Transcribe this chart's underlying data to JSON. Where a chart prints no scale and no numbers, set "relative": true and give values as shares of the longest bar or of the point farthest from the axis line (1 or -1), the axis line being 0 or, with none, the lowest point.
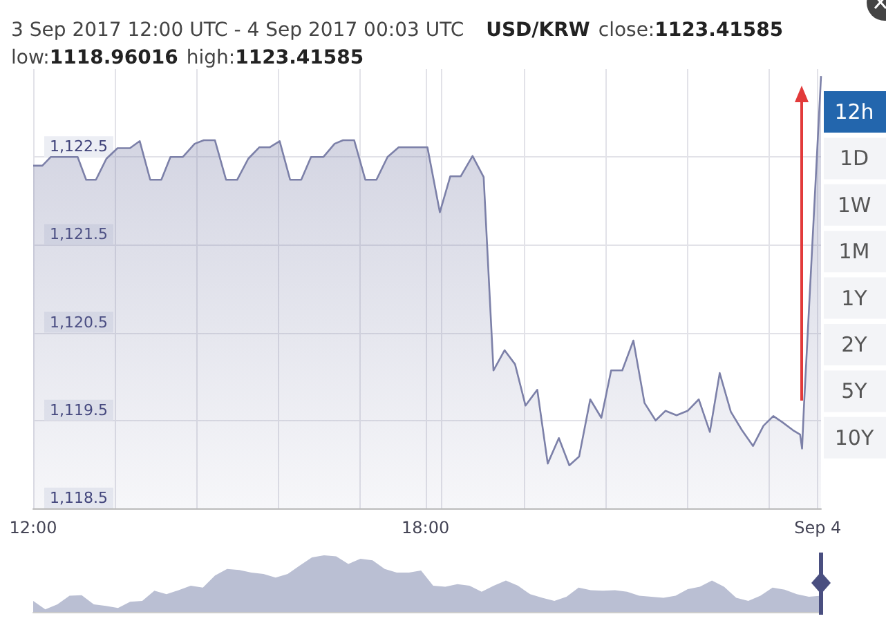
{
  "chart_data": [
    {
      "type": "area",
      "title": "3 Sep 2017 12:00 UTC - 4 Sep 2017 00:03 UTC",
      "subtitle": "USD/KRW close:1123.41585 low:1118.96016 high:1123.41585",
      "x": [
        12.0,
        12.14,
        12.27,
        12.68,
        12.81,
        12.96,
        13.12,
        13.29,
        13.48,
        13.63,
        13.79,
        13.96,
        14.1,
        14.29,
        14.47,
        14.61,
        14.78,
        14.95,
        15.12,
        15.29,
        15.46,
        15.62,
        15.77,
        15.93,
        16.1,
        16.25,
        16.44,
        16.61,
        16.74,
        16.91,
        17.08,
        17.25,
        17.42,
        17.59,
        18.03,
        18.22,
        18.38,
        18.54,
        18.72,
        18.89,
        19.04,
        19.21,
        19.37,
        19.53,
        19.71,
        19.87,
        20.04,
        20.2,
        20.35,
        20.52,
        20.69,
        20.84,
        21.01,
        21.18,
        21.35,
        21.52,
        21.67,
        21.84,
        22.01,
        22.18,
        22.35,
        22.5,
        22.67,
        22.84,
        23.01,
        23.17,
        23.32,
        23.46,
        23.62,
        23.73,
        23.76,
        23.79,
        24.05
      ],
      "series": [
        {
          "color": "#7c80a8",
          "values": [
            1122.4,
            1122.4,
            1122.5,
            1122.5,
            1122.24,
            1122.24,
            1122.48,
            1122.6,
            1122.6,
            1122.68,
            1122.24,
            1122.24,
            1122.5,
            1122.5,
            1122.65,
            1122.69,
            1122.69,
            1122.24,
            1122.24,
            1122.48,
            1122.61,
            1122.61,
            1122.68,
            1122.24,
            1122.24,
            1122.5,
            1122.5,
            1122.65,
            1122.69,
            1122.69,
            1122.24,
            1122.24,
            1122.5,
            1122.61,
            1122.61,
            1121.87,
            1122.28,
            1122.28,
            1122.51,
            1122.27,
            1120.07,
            1120.3,
            1120.14,
            1119.67,
            1119.85,
            1119.01,
            1119.3,
            1118.99,
            1119.09,
            1119.74,
            1119.53,
            1120.07,
            1120.07,
            1120.41,
            1119.7,
            1119.5,
            1119.61,
            1119.56,
            1119.61,
            1119.74,
            1119.37,
            1120.04,
            1119.6,
            1119.39,
            1119.21,
            1119.44,
            1119.55,
            1119.48,
            1119.39,
            1119.34,
            1119.18,
            1119.68,
            1123.42
          ]
        }
      ],
      "xlim": [
        12,
        24.05
      ],
      "xticks": [
        {
          "value": 12,
          "label": "12:00"
        },
        {
          "value": 13.25,
          "label": null
        },
        {
          "value": 14.5,
          "label": null
        },
        {
          "value": 15.75,
          "label": null
        },
        {
          "value": 17,
          "label": null
        },
        {
          "value": 18,
          "label": "18:00"
        },
        {
          "value": 18.25,
          "label": null
        },
        {
          "value": 19.5,
          "label": null
        },
        {
          "value": 20.75,
          "label": null
        },
        {
          "value": 22,
          "label": null
        },
        {
          "value": 23.25,
          "label": null
        },
        {
          "value": 24,
          "label": "Sep 4"
        }
      ],
      "ylim": [
        1118.5,
        1123.5
      ],
      "yticks": [
        {
          "value": 1118.5,
          "label": "1,118.5"
        },
        {
          "value": 1119.5,
          "label": "1,119.5"
        },
        {
          "value": 1120.5,
          "label": "1,120.5"
        },
        {
          "value": 1121.5,
          "label": "1,121.5"
        },
        {
          "value": 1122.5,
          "label": "1,122.5"
        }
      ],
      "grid": true,
      "marker": "none",
      "line_style": "solid",
      "annotations": [
        "12h",
        "1D",
        "1W",
        "1M",
        "1Y",
        "2Y",
        "5Y",
        "10Y"
      ]
    },
    {
      "type": "area",
      "relative": true,
      "categories": [
        null,
        null,
        null,
        null,
        null,
        null,
        null,
        null,
        null,
        null,
        null,
        null,
        null,
        null,
        null,
        null,
        null,
        null,
        null,
        null,
        null,
        null,
        null,
        null,
        null,
        null,
        null,
        null,
        null,
        null,
        null,
        null,
        null,
        null,
        null,
        null,
        null,
        null,
        null,
        null,
        null,
        null,
        null,
        null,
        null,
        null,
        null,
        null,
        null,
        null,
        null,
        null,
        null,
        null,
        null,
        null,
        null,
        null,
        null,
        null,
        null,
        null,
        null,
        null,
        null,
        null
      ],
      "series": [
        {
          "color": "#babfd3",
          "values": [
            0.196,
            0.045,
            0.134,
            0.286,
            0.295,
            0.134,
            0.107,
            0.071,
            0.179,
            0.196,
            0.375,
            0.313,
            0.384,
            0.464,
            0.429,
            0.643,
            0.759,
            0.741,
            0.696,
            0.67,
            0.607,
            0.67,
            0.821,
            0.964,
            1,
            0.982,
            0.848,
            0.938,
            0.911,
            0.759,
            0.696,
            0.696,
            0.732,
            0.464,
            0.446,
            0.491,
            0.464,
            0.357,
            0.464,
            0.554,
            0.464,
            0.313,
            0.25,
            0.196,
            0.268,
            0.429,
            0.384,
            0.375,
            0.384,
            0.357,
            0.286,
            0.268,
            0.25,
            0.286,
            0.402,
            0.446,
            0.554,
            0.446,
            0.25,
            0.196,
            0.286,
            0.429,
            0.393,
            0.313,
            0.268,
            0.286
          ]
        }
      ],
      "marker": "none"
    }
  ]
}
